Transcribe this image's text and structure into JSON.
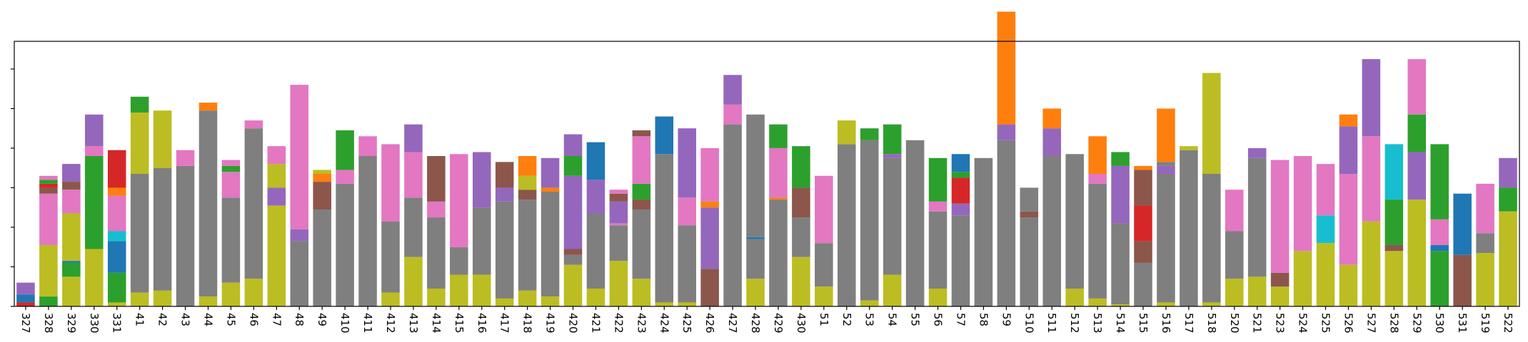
{
  "chart_data": {
    "type": "bar",
    "stacked": true,
    "title": "",
    "xlabel": "",
    "ylabel": "",
    "ylim": [
      0,
      67
    ],
    "y_ticks": [
      0,
      10,
      20,
      30,
      40,
      50,
      60
    ],
    "y_tick_labels": [
      "",
      "",
      "",
      "",
      "",
      "",
      ""
    ],
    "grid": false,
    "legend": "none",
    "categories": [
      "327",
      "328",
      "329",
      "330",
      "331",
      "41",
      "42",
      "43",
      "44",
      "45",
      "46",
      "47",
      "48",
      "49",
      "410",
      "411",
      "412",
      "413",
      "414",
      "415",
      "416",
      "417",
      "418",
      "419",
      "420",
      "421",
      "422",
      "423",
      "424",
      "425",
      "426",
      "427",
      "428",
      "429",
      "430",
      "51",
      "52",
      "53",
      "54",
      "55",
      "56",
      "57",
      "58",
      "59",
      "510",
      "511",
      "512",
      "513",
      "514",
      "515",
      "516",
      "517",
      "518",
      "520",
      "521",
      "523",
      "524",
      "525",
      "526",
      "527",
      "528",
      "529",
      "530",
      "531",
      "519",
      "522"
    ],
    "colors": {
      "olive": "#bcbd22",
      "gray": "#7f7f7f",
      "pink": "#e377c2",
      "brown": "#8c564b",
      "purple": "#9467bd",
      "red": "#d62728",
      "green": "#2ca02c",
      "orange": "#ff7f0e",
      "blue": "#1f77b4",
      "cyan": "#17becf"
    },
    "stacks": [
      [
        [
          "red",
          1
        ],
        [
          "blue",
          2
        ],
        [
          "purple",
          3
        ]
      ],
      [
        [
          "green",
          2.5
        ],
        [
          "olive",
          13
        ],
        [
          "pink",
          13
        ],
        [
          "brown",
          1.5
        ],
        [
          "red",
          1
        ],
        [
          "green",
          1
        ],
        [
          "pink",
          1
        ]
      ],
      [
        [
          "olive",
          7.5
        ],
        [
          "green",
          3.5
        ],
        [
          "blue",
          0.5
        ],
        [
          "olive",
          12
        ],
        [
          "pink",
          6
        ],
        [
          "brown",
          2
        ],
        [
          "purple",
          4.5
        ]
      ],
      [
        [
          "olive",
          14.5
        ],
        [
          "green",
          23.5
        ],
        [
          "pink",
          2.5
        ],
        [
          "purple",
          8
        ]
      ],
      [
        [
          "olive",
          1
        ],
        [
          "green",
          7.5
        ],
        [
          "blue",
          8
        ],
        [
          "cyan",
          2.5
        ],
        [
          "pink",
          9
        ],
        [
          "orange",
          2
        ],
        [
          "red",
          9.5
        ]
      ],
      [
        [
          "olive",
          3.5
        ],
        [
          "gray",
          30
        ],
        [
          "olive",
          15.5
        ],
        [
          "green",
          4
        ]
      ],
      [
        [
          "olive",
          4
        ],
        [
          "gray",
          31
        ],
        [
          "olive",
          14.5
        ]
      ],
      [
        [
          "gray",
          35.5
        ],
        [
          "pink",
          4
        ]
      ],
      [
        [
          "olive",
          2.5
        ],
        [
          "gray",
          47
        ],
        [
          "orange",
          2
        ]
      ],
      [
        [
          "olive",
          6
        ],
        [
          "gray",
          21.5
        ],
        [
          "pink",
          6.5
        ],
        [
          "green",
          1.5
        ],
        [
          "pink",
          1.5
        ]
      ],
      [
        [
          "olive",
          7
        ],
        [
          "gray",
          38
        ],
        [
          "pink",
          2
        ]
      ],
      [
        [
          "olive",
          25.5
        ],
        [
          "purple",
          4.5
        ],
        [
          "olive",
          6
        ],
        [
          "pink",
          4.5
        ]
      ],
      [
        [
          "gray",
          16.5
        ],
        [
          "purple",
          3
        ],
        [
          "pink",
          36.5
        ]
      ],
      [
        [
          "gray",
          24.5
        ],
        [
          "brown",
          7
        ],
        [
          "orange",
          2
        ],
        [
          "olive",
          1
        ]
      ],
      [
        [
          "gray",
          31
        ],
        [
          "pink",
          3.5
        ],
        [
          "green",
          10
        ]
      ],
      [
        [
          "gray",
          38
        ],
        [
          "pink",
          5
        ]
      ],
      [
        [
          "olive",
          3.5
        ],
        [
          "gray",
          18
        ],
        [
          "pink",
          19.5
        ]
      ],
      [
        [
          "olive",
          12.5
        ],
        [
          "gray",
          15
        ],
        [
          "pink",
          11.5
        ],
        [
          "purple",
          7
        ]
      ],
      [
        [
          "olive",
          4.5
        ],
        [
          "gray",
          18
        ],
        [
          "pink",
          4
        ],
        [
          "brown",
          11.5
        ]
      ],
      [
        [
          "olive",
          8
        ],
        [
          "gray",
          7
        ],
        [
          "pink",
          23.5
        ]
      ],
      [
        [
          "olive",
          8
        ],
        [
          "gray",
          17
        ],
        [
          "purple",
          14
        ]
      ],
      [
        [
          "olive",
          2
        ],
        [
          "gray",
          24.5
        ],
        [
          "purple",
          3.5
        ],
        [
          "brown",
          6.5
        ]
      ],
      [
        [
          "olive",
          4
        ],
        [
          "gray",
          23
        ],
        [
          "brown",
          2.5
        ],
        [
          "olive",
          3.5
        ],
        [
          "orange",
          4
        ],
        [
          "orange",
          1
        ]
      ],
      [
        [
          "olive",
          2.5
        ],
        [
          "gray",
          26.5
        ],
        [
          "orange",
          1
        ],
        [
          "purple",
          7.5
        ]
      ],
      [
        [
          "olive",
          10.5
        ],
        [
          "gray",
          2.5
        ],
        [
          "brown",
          1.5
        ],
        [
          "purple",
          18.5
        ],
        [
          "green",
          5
        ],
        [
          "purple",
          5.5
        ]
      ],
      [
        [
          "olive",
          4.5
        ],
        [
          "gray",
          19
        ],
        [
          "purple",
          8.5
        ],
        [
          "blue",
          9.5
        ]
      ],
      [
        [
          "olive",
          11.5
        ],
        [
          "gray",
          9
        ],
        [
          "pink",
          0.5
        ],
        [
          "purple",
          5.5
        ],
        [
          "brown",
          2
        ],
        [
          "pink",
          1
        ]
      ],
      [
        [
          "olive",
          7
        ],
        [
          "gray",
          17.5
        ],
        [
          "brown",
          2.5
        ],
        [
          "green",
          4
        ],
        [
          "pink",
          12
        ],
        [
          "brown",
          1.5
        ]
      ],
      [
        [
          "olive",
          1
        ],
        [
          "gray",
          37.5
        ],
        [
          "blue",
          9.5
        ]
      ],
      [
        [
          "olive",
          1
        ],
        [
          "gray",
          19.5
        ],
        [
          "pink",
          7
        ],
        [
          "purple",
          17.5
        ]
      ],
      [
        [
          "brown",
          9.5
        ],
        [
          "purple",
          15.5
        ],
        [
          "orange",
          1.5
        ],
        [
          "pink",
          13.5
        ]
      ],
      [
        [
          "gray",
          46
        ],
        [
          "pink",
          5
        ],
        [
          "purple",
          7.5
        ]
      ],
      [
        [
          "olive",
          7
        ],
        [
          "gray",
          10
        ],
        [
          "blue",
          0.5
        ],
        [
          "gray",
          31
        ]
      ],
      [
        [
          "gray",
          27
        ],
        [
          "orange",
          0.5
        ],
        [
          "pink",
          12.5
        ],
        [
          "green",
          6
        ]
      ],
      [
        [
          "olive",
          12.5
        ],
        [
          "gray",
          10
        ],
        [
          "brown",
          7.5
        ],
        [
          "green",
          10.5
        ]
      ],
      [
        [
          "olive",
          5
        ],
        [
          "gray",
          11
        ],
        [
          "pink",
          17
        ]
      ],
      [
        [
          "gray",
          41
        ],
        [
          "olive",
          6
        ]
      ],
      [
        [
          "olive",
          1.5
        ],
        [
          "gray",
          40.5
        ],
        [
          "green",
          3
        ]
      ],
      [
        [
          "olive",
          8
        ],
        [
          "gray",
          29.5
        ],
        [
          "purple",
          1
        ],
        [
          "green",
          7.5
        ]
      ],
      [
        [
          "gray",
          42
        ]
      ],
      [
        [
          "olive",
          4.5
        ],
        [
          "gray",
          19.5
        ],
        [
          "pink",
          2.5
        ],
        [
          "green",
          11
        ]
      ],
      [
        [
          "gray",
          23
        ],
        [
          "purple",
          3
        ],
        [
          "red",
          6.5
        ],
        [
          "green",
          1.5
        ],
        [
          "blue",
          4.5
        ]
      ],
      [
        [
          "gray",
          37.5
        ]
      ],
      [
        [
          "gray",
          42
        ],
        [
          "purple",
          4
        ],
        [
          "orange",
          28.5
        ]
      ],
      [
        [
          "gray",
          22.5
        ],
        [
          "brown",
          1.5
        ],
        [
          "gray",
          6
        ]
      ],
      [
        [
          "gray",
          38
        ],
        [
          "purple",
          7
        ],
        [
          "orange",
          5
        ]
      ],
      [
        [
          "olive",
          4.5
        ],
        [
          "gray",
          34
        ]
      ],
      [
        [
          "olive",
          2
        ],
        [
          "gray",
          29
        ],
        [
          "pink",
          2.5
        ],
        [
          "orange",
          9.5
        ]
      ],
      [
        [
          "olive",
          0.5
        ],
        [
          "gray",
          20.5
        ],
        [
          "purple",
          14.5
        ],
        [
          "green",
          3.5
        ]
      ],
      [
        [
          "gray",
          11
        ],
        [
          "brown",
          5.5
        ],
        [
          "red",
          9
        ],
        [
          "brown",
          9
        ],
        [
          "orange",
          1
        ]
      ],
      [
        [
          "olive",
          1
        ],
        [
          "gray",
          32.5
        ],
        [
          "purple",
          2
        ],
        [
          "gray",
          1
        ],
        [
          "orange",
          13.5
        ]
      ],
      [
        [
          "gray",
          39.5
        ],
        [
          "olive",
          1
        ]
      ],
      [
        [
          "olive",
          1
        ],
        [
          "gray",
          32.5
        ],
        [
          "olive",
          25.5
        ]
      ],
      [
        [
          "olive",
          7
        ],
        [
          "gray",
          12
        ],
        [
          "pink",
          10.5
        ]
      ],
      [
        [
          "olive",
          7.5
        ],
        [
          "gray",
          30
        ],
        [
          "purple",
          2.5
        ]
      ],
      [
        [
          "olive",
          5
        ],
        [
          "brown",
          3.5
        ],
        [
          "pink",
          28.5
        ]
      ],
      [
        [
          "olive",
          14
        ],
        [
          "pink",
          24
        ]
      ],
      [
        [
          "olive",
          16
        ],
        [
          "cyan",
          7
        ],
        [
          "pink",
          13
        ]
      ],
      [
        [
          "olive",
          10.5
        ],
        [
          "pink",
          23
        ],
        [
          "purple",
          12
        ],
        [
          "orange",
          3
        ]
      ],
      [
        [
          "olive",
          21.5
        ],
        [
          "pink",
          21.5
        ],
        [
          "purple",
          19.5
        ]
      ],
      [
        [
          "olive",
          14
        ],
        [
          "brown",
          1.5
        ],
        [
          "green",
          11.5
        ],
        [
          "cyan",
          14
        ]
      ],
      [
        [
          "olive",
          27
        ],
        [
          "purple",
          12
        ],
        [
          "green",
          9.5
        ],
        [
          "pink",
          14
        ]
      ],
      [
        [
          "green",
          14
        ],
        [
          "blue",
          1.5
        ],
        [
          "pink",
          6.5
        ],
        [
          "green",
          19
        ]
      ],
      [
        [
          "brown",
          13
        ],
        [
          "blue",
          15.5
        ]
      ],
      [
        [
          "olive",
          13.5
        ],
        [
          "gray",
          5
        ],
        [
          "pink",
          12.5
        ]
      ],
      [
        [
          "olive",
          24
        ],
        [
          "green",
          6
        ],
        [
          "purple",
          7.5
        ]
      ]
    ]
  }
}
